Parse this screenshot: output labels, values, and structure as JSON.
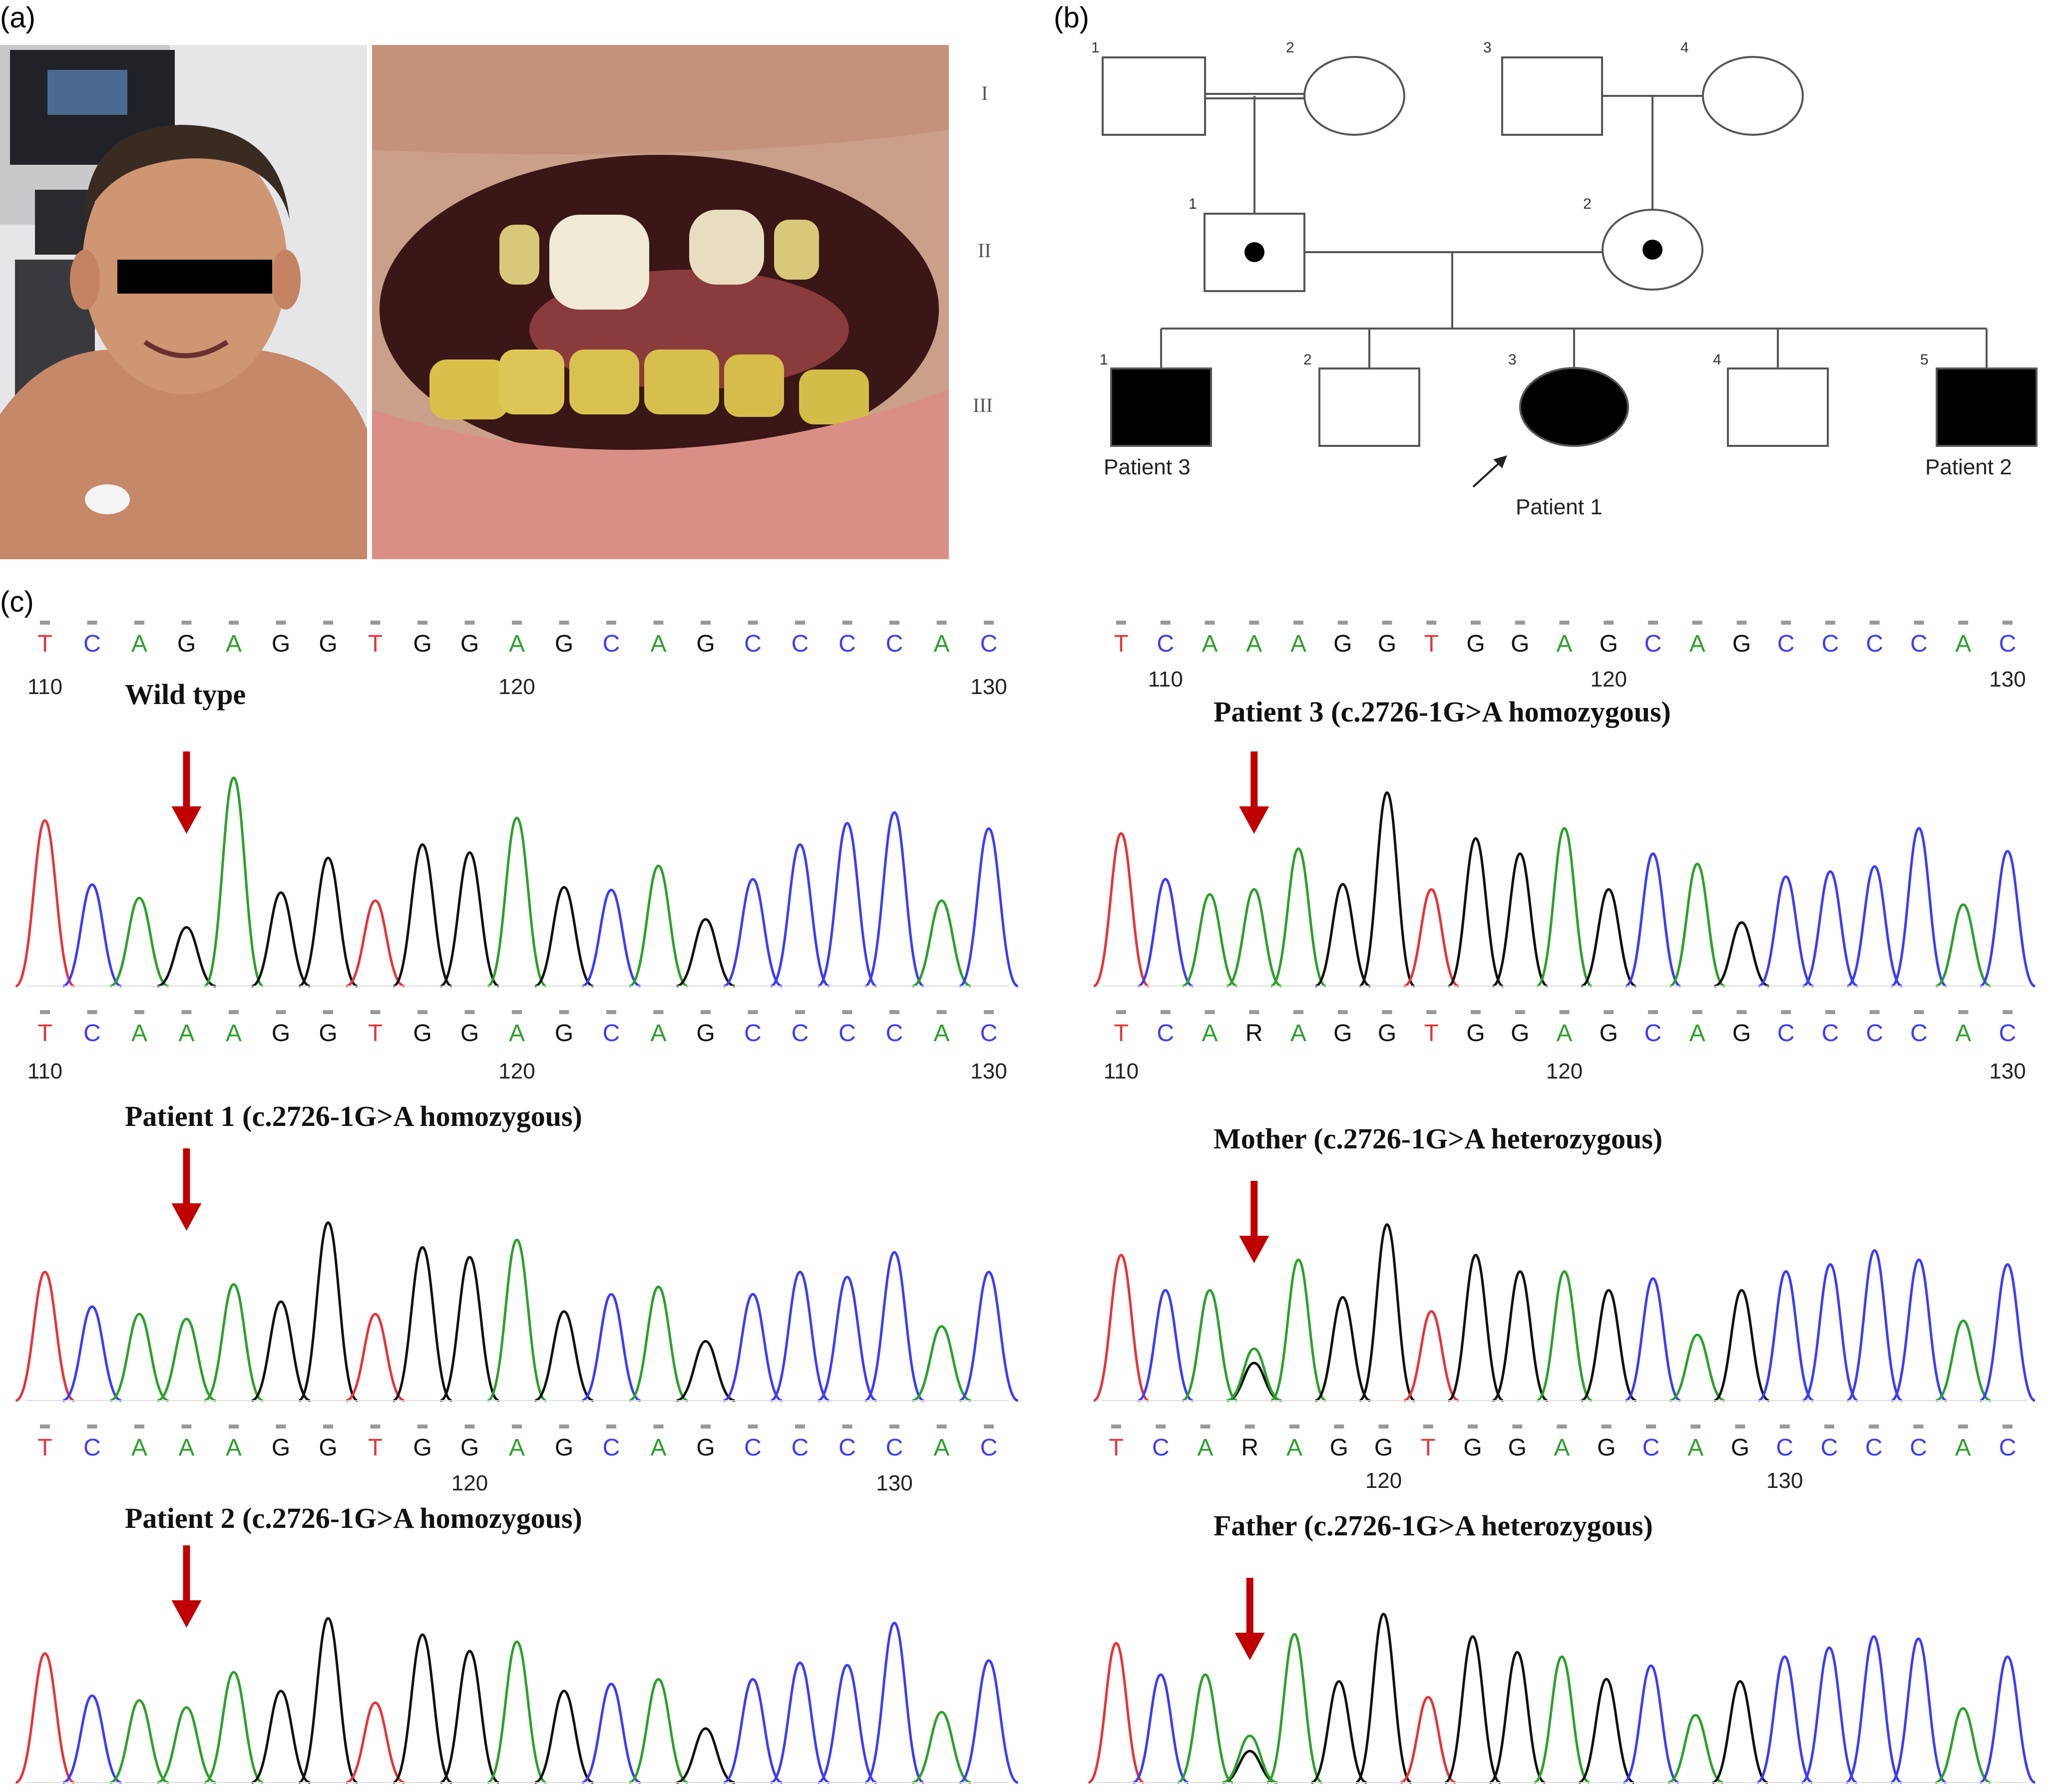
{
  "panels": {
    "a": {
      "label": "(a)",
      "photo_left": "boy face photo with eye bar",
      "photo_right": "close-up of teeth with yellowish discoloration"
    },
    "b": {
      "label": "(b)"
    },
    "c": {
      "label": "(c)"
    }
  },
  "pedigree": {
    "generations": [
      "I",
      "II",
      "III"
    ],
    "gen1": [
      {
        "num": "1",
        "sex": "male",
        "status": "unaffected"
      },
      {
        "num": "2",
        "sex": "female",
        "status": "unaffected"
      },
      {
        "num": "3",
        "sex": "male",
        "status": "unaffected"
      },
      {
        "num": "4",
        "sex": "female",
        "status": "unaffected"
      }
    ],
    "gen2": [
      {
        "num": "1",
        "sex": "male",
        "status": "carrier"
      },
      {
        "num": "2",
        "sex": "female",
        "status": "carrier"
      }
    ],
    "gen3": [
      {
        "num": "1",
        "sex": "male",
        "status": "affected",
        "name": "Patient 3"
      },
      {
        "num": "2",
        "sex": "male",
        "status": "unaffected",
        "name": ""
      },
      {
        "num": "3",
        "sex": "female",
        "status": "affected",
        "name": "Patient 1",
        "proband": true
      },
      {
        "num": "4",
        "sex": "male",
        "status": "unaffected",
        "name": ""
      },
      {
        "num": "5",
        "sex": "male",
        "status": "affected",
        "name": "Patient 2"
      }
    ]
  },
  "traces": [
    {
      "title": "Wild type",
      "bases": [
        "T",
        "C",
        "A",
        "G",
        "A",
        "G",
        "G",
        "T",
        "G",
        "G",
        "A",
        "G",
        "C",
        "A",
        "G",
        "C",
        "C",
        "C",
        "C",
        "A",
        "C"
      ],
      "positions": [
        {
          "label": "110",
          "index": 0
        },
        {
          "label": "120",
          "index": 10
        },
        {
          "label": "130",
          "index": 20
        }
      ],
      "peaks": [
        0.62,
        0.38,
        0.33,
        0.22,
        0.78,
        0.35,
        0.48,
        0.32,
        0.53,
        0.5,
        0.63,
        0.37,
        0.36,
        0.45,
        0.25,
        0.4,
        0.53,
        0.61,
        0.65,
        0.32,
        0.59
      ]
    },
    {
      "title": "Patient 3 (c.2726-1G>A homozygous)",
      "bases": [
        "T",
        "C",
        "A",
        "A",
        "A",
        "G",
        "G",
        "T",
        "G",
        "G",
        "A",
        "G",
        "C",
        "A",
        "G",
        "C",
        "C",
        "C",
        "C",
        "A",
        "C"
      ],
      "positions": [
        {
          "label": "110",
          "index": 1
        },
        {
          "label": "120",
          "index": 11
        },
        {
          "label": "130",
          "index": 20
        }
      ],
      "peaks": [
        0.6,
        0.42,
        0.36,
        0.38,
        0.54,
        0.4,
        0.76,
        0.38,
        0.58,
        0.52,
        0.62,
        0.38,
        0.52,
        0.48,
        0.25,
        0.43,
        0.45,
        0.47,
        0.62,
        0.32,
        0.53
      ]
    },
    {
      "title": "Patient 1 (c.2726-1G>A homozygous)",
      "bases": [
        "T",
        "C",
        "A",
        "A",
        "A",
        "G",
        "G",
        "T",
        "G",
        "G",
        "A",
        "G",
        "C",
        "A",
        "G",
        "C",
        "C",
        "C",
        "C",
        "A",
        "C"
      ],
      "positions": [
        {
          "label": "110",
          "index": 0
        },
        {
          "label": "120",
          "index": 10
        },
        {
          "label": "130",
          "index": 20
        }
      ],
      "peaks": [
        0.52,
        0.38,
        0.35,
        0.33,
        0.47,
        0.4,
        0.72,
        0.35,
        0.62,
        0.58,
        0.65,
        0.36,
        0.43,
        0.46,
        0.24,
        0.43,
        0.52,
        0.5,
        0.6,
        0.3,
        0.52
      ]
    },
    {
      "title": "Mother (c.2726-1G>A heterozygous)",
      "bases": [
        "T",
        "C",
        "A",
        "R",
        "A",
        "G",
        "G",
        "T",
        "G",
        "G",
        "A",
        "G",
        "C",
        "A",
        "G",
        "C",
        "C",
        "C",
        "C",
        "A",
        "C"
      ],
      "positions": [
        {
          "label": "110",
          "index": 0
        },
        {
          "label": "120",
          "index": 10
        },
        {
          "label": "130",
          "index": 20
        }
      ],
      "peaks": [
        0.62,
        0.47,
        0.47,
        0.16,
        0.6,
        0.44,
        0.75,
        0.38,
        0.62,
        0.55,
        0.55,
        0.47,
        0.52,
        0.28,
        0.47,
        0.55,
        0.58,
        0.64,
        0.6,
        0.34,
        0.58
      ]
    },
    {
      "title": "Patient 2 (c.2726-1G>A homozygous)",
      "bases": [
        "T",
        "C",
        "A",
        "A",
        "A",
        "G",
        "G",
        "T",
        "G",
        "G",
        "A",
        "G",
        "C",
        "A",
        "G",
        "C",
        "C",
        "C",
        "C",
        "A",
        "C"
      ],
      "positions": [
        {
          "label": "120",
          "index": 9
        },
        {
          "label": "130",
          "index": 18
        }
      ],
      "peaks": [
        0.55,
        0.37,
        0.35,
        0.32,
        0.47,
        0.39,
        0.7,
        0.34,
        0.63,
        0.56,
        0.6,
        0.39,
        0.42,
        0.44,
        0.23,
        0.44,
        0.51,
        0.5,
        0.68,
        0.3,
        0.52
      ]
    },
    {
      "title": "Father (c.2726-1G>A heterozygous)",
      "bases": [
        "T",
        "C",
        "A",
        "R",
        "A",
        "G",
        "G",
        "T",
        "G",
        "G",
        "A",
        "G",
        "C",
        "A",
        "G",
        "C",
        "C",
        "C",
        "C",
        "A",
        "C"
      ],
      "positions": [
        {
          "label": "120",
          "index": 6
        },
        {
          "label": "130",
          "index": 15
        }
      ],
      "peaks": [
        0.62,
        0.48,
        0.48,
        0.14,
        0.66,
        0.45,
        0.75,
        0.38,
        0.65,
        0.58,
        0.56,
        0.46,
        0.52,
        0.3,
        0.45,
        0.56,
        0.6,
        0.65,
        0.64,
        0.33,
        0.56
      ]
    }
  ],
  "colors": {
    "T": "#e8333a",
    "C": "#3b3bff",
    "A": "#2ca02c",
    "G": "#111111",
    "R": "#111111",
    "arrow": "#c00000",
    "pedigree_line": "#555555"
  }
}
